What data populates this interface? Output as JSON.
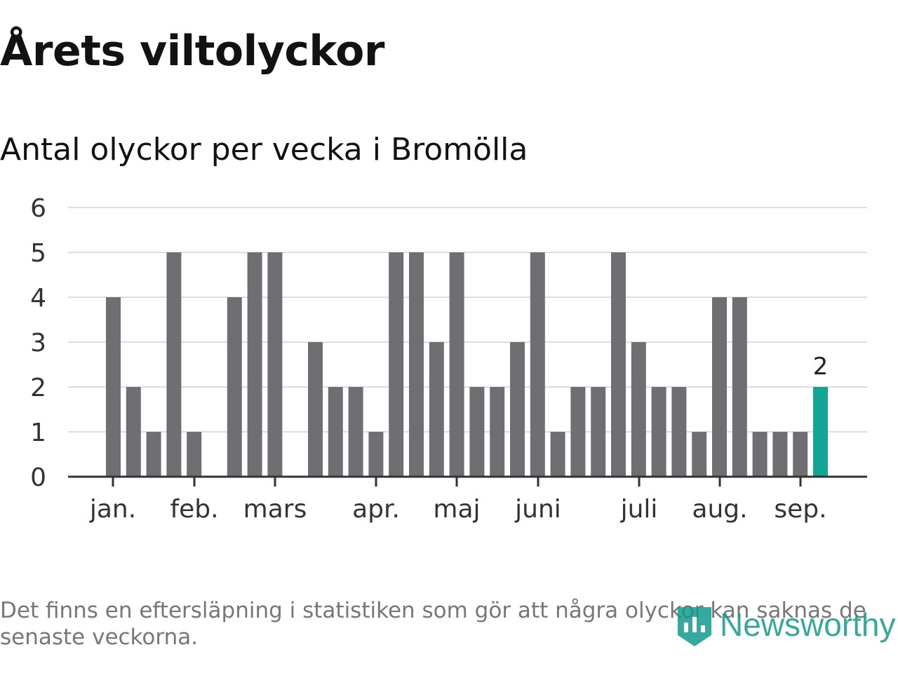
{
  "header": {
    "title": "Årets viltolyckor",
    "subtitle": "Antal olyckor per vecka i Bromölla"
  },
  "chart_data": {
    "type": "bar",
    "title": "Årets viltolyckor",
    "subtitle": "Antal olyckor per vecka i Bromölla",
    "xlabel": "",
    "ylabel": "",
    "ylim": [
      0,
      6
    ],
    "yticks": [
      0,
      1,
      2,
      3,
      4,
      5,
      6
    ],
    "grid": true,
    "x_tick_labels": [
      "jan.",
      "feb.",
      "mars",
      "apr.",
      "maj",
      "juni",
      "juli",
      "aug.",
      "sep."
    ],
    "values": [
      4,
      2,
      1,
      5,
      1,
      0,
      4,
      5,
      5,
      0,
      3,
      2,
      2,
      1,
      5,
      5,
      3,
      5,
      2,
      2,
      3,
      5,
      1,
      2,
      2,
      5,
      3,
      2,
      2,
      1,
      4,
      4,
      1,
      1,
      1,
      2
    ],
    "highlight": {
      "index": 35,
      "label": "2"
    },
    "colors": {
      "bar": "#6f6e73",
      "highlight": "#12a596",
      "grid": "#dddddd",
      "axis": "#333333"
    }
  },
  "footer": {
    "note": "Det finns en eftersläpning i statistiken som gör att några olyckor kan saknas de senaste veckorna.",
    "brand": "Newsworthy",
    "brand_icon": "newsworthy-logo-icon"
  }
}
